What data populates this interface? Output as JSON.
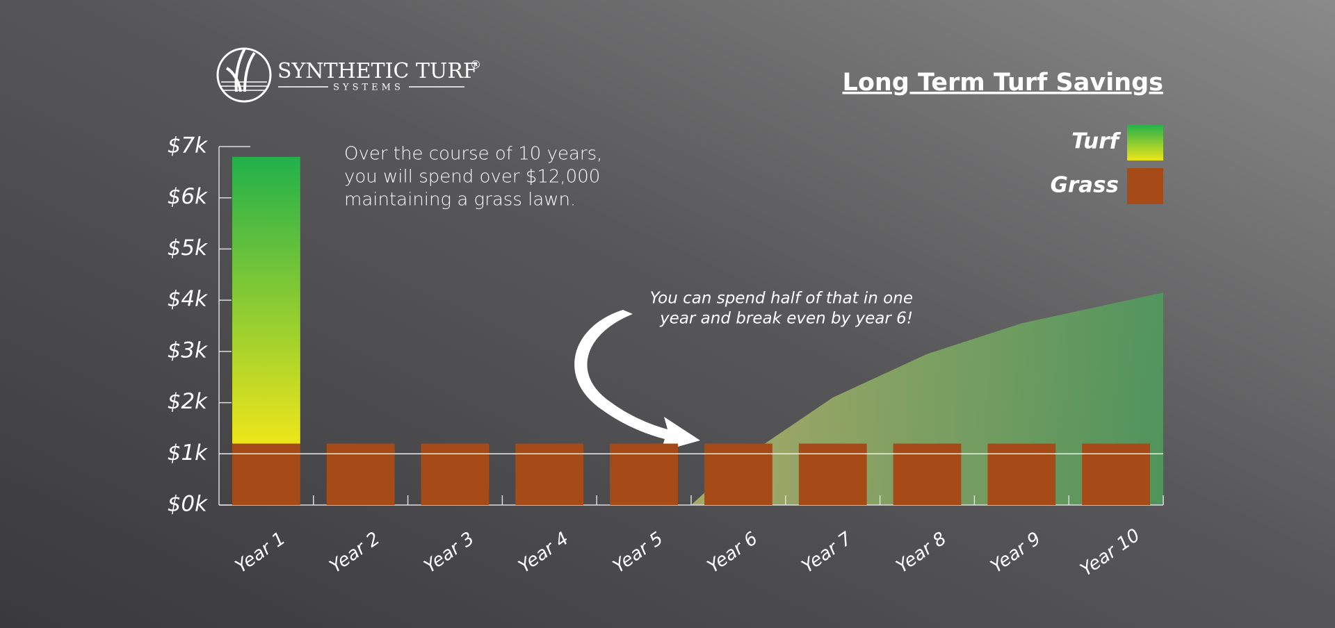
{
  "logo": {
    "name": "SYNTHETIC TURF",
    "mark": "®",
    "tagline": "SYSTEMS"
  },
  "chart_data": {
    "type": "bar",
    "stacked": true,
    "title": "Long Term Turf Savings",
    "annotations": [
      "Over the course of 10 years,",
      "you will spend over $12,000",
      "maintaining a grass lawn."
    ],
    "callout": [
      "You can spend half of that in one",
      "year and break even by year 6!"
    ],
    "categories": [
      "Year 1",
      "Year 2",
      "Year 3",
      "Year 4",
      "Year 5",
      "Year 6",
      "Year 7",
      "Year 8",
      "Year 9",
      "Year 10"
    ],
    "series": [
      {
        "name": "Turf",
        "color": "#22b04b",
        "color_end": "#ede51a",
        "values": [
          5.6,
          null,
          null,
          null,
          null,
          null,
          null,
          null,
          null,
          null
        ]
      },
      {
        "name": "Grass",
        "color": "#a64b17",
        "values": [
          1.2,
          1.2,
          1.2,
          1.2,
          1.2,
          1.2,
          1.2,
          1.2,
          1.2,
          1.2
        ]
      }
    ],
    "area": {
      "color": "#4f9a5c",
      "color_start": "#b3b46a",
      "x": [
        5.5,
        6,
        7,
        8,
        9,
        10,
        10.5
      ],
      "values": [
        0,
        0.85,
        2.1,
        2.95,
        3.55,
        3.95,
        4.15
      ]
    },
    "reference_line": 1,
    "ylim": [
      0,
      7
    ],
    "yticks": [
      {
        "value": 0,
        "label": "$0k"
      },
      {
        "value": 1,
        "label": "$1k"
      },
      {
        "value": 2,
        "label": "$2k"
      },
      {
        "value": 3,
        "label": "$3k"
      },
      {
        "value": 4,
        "label": "$4k"
      },
      {
        "value": 5,
        "label": "$5k"
      },
      {
        "value": 6,
        "label": "$6k"
      },
      {
        "value": 7,
        "label": "$7k"
      }
    ],
    "legend": "top-right"
  }
}
